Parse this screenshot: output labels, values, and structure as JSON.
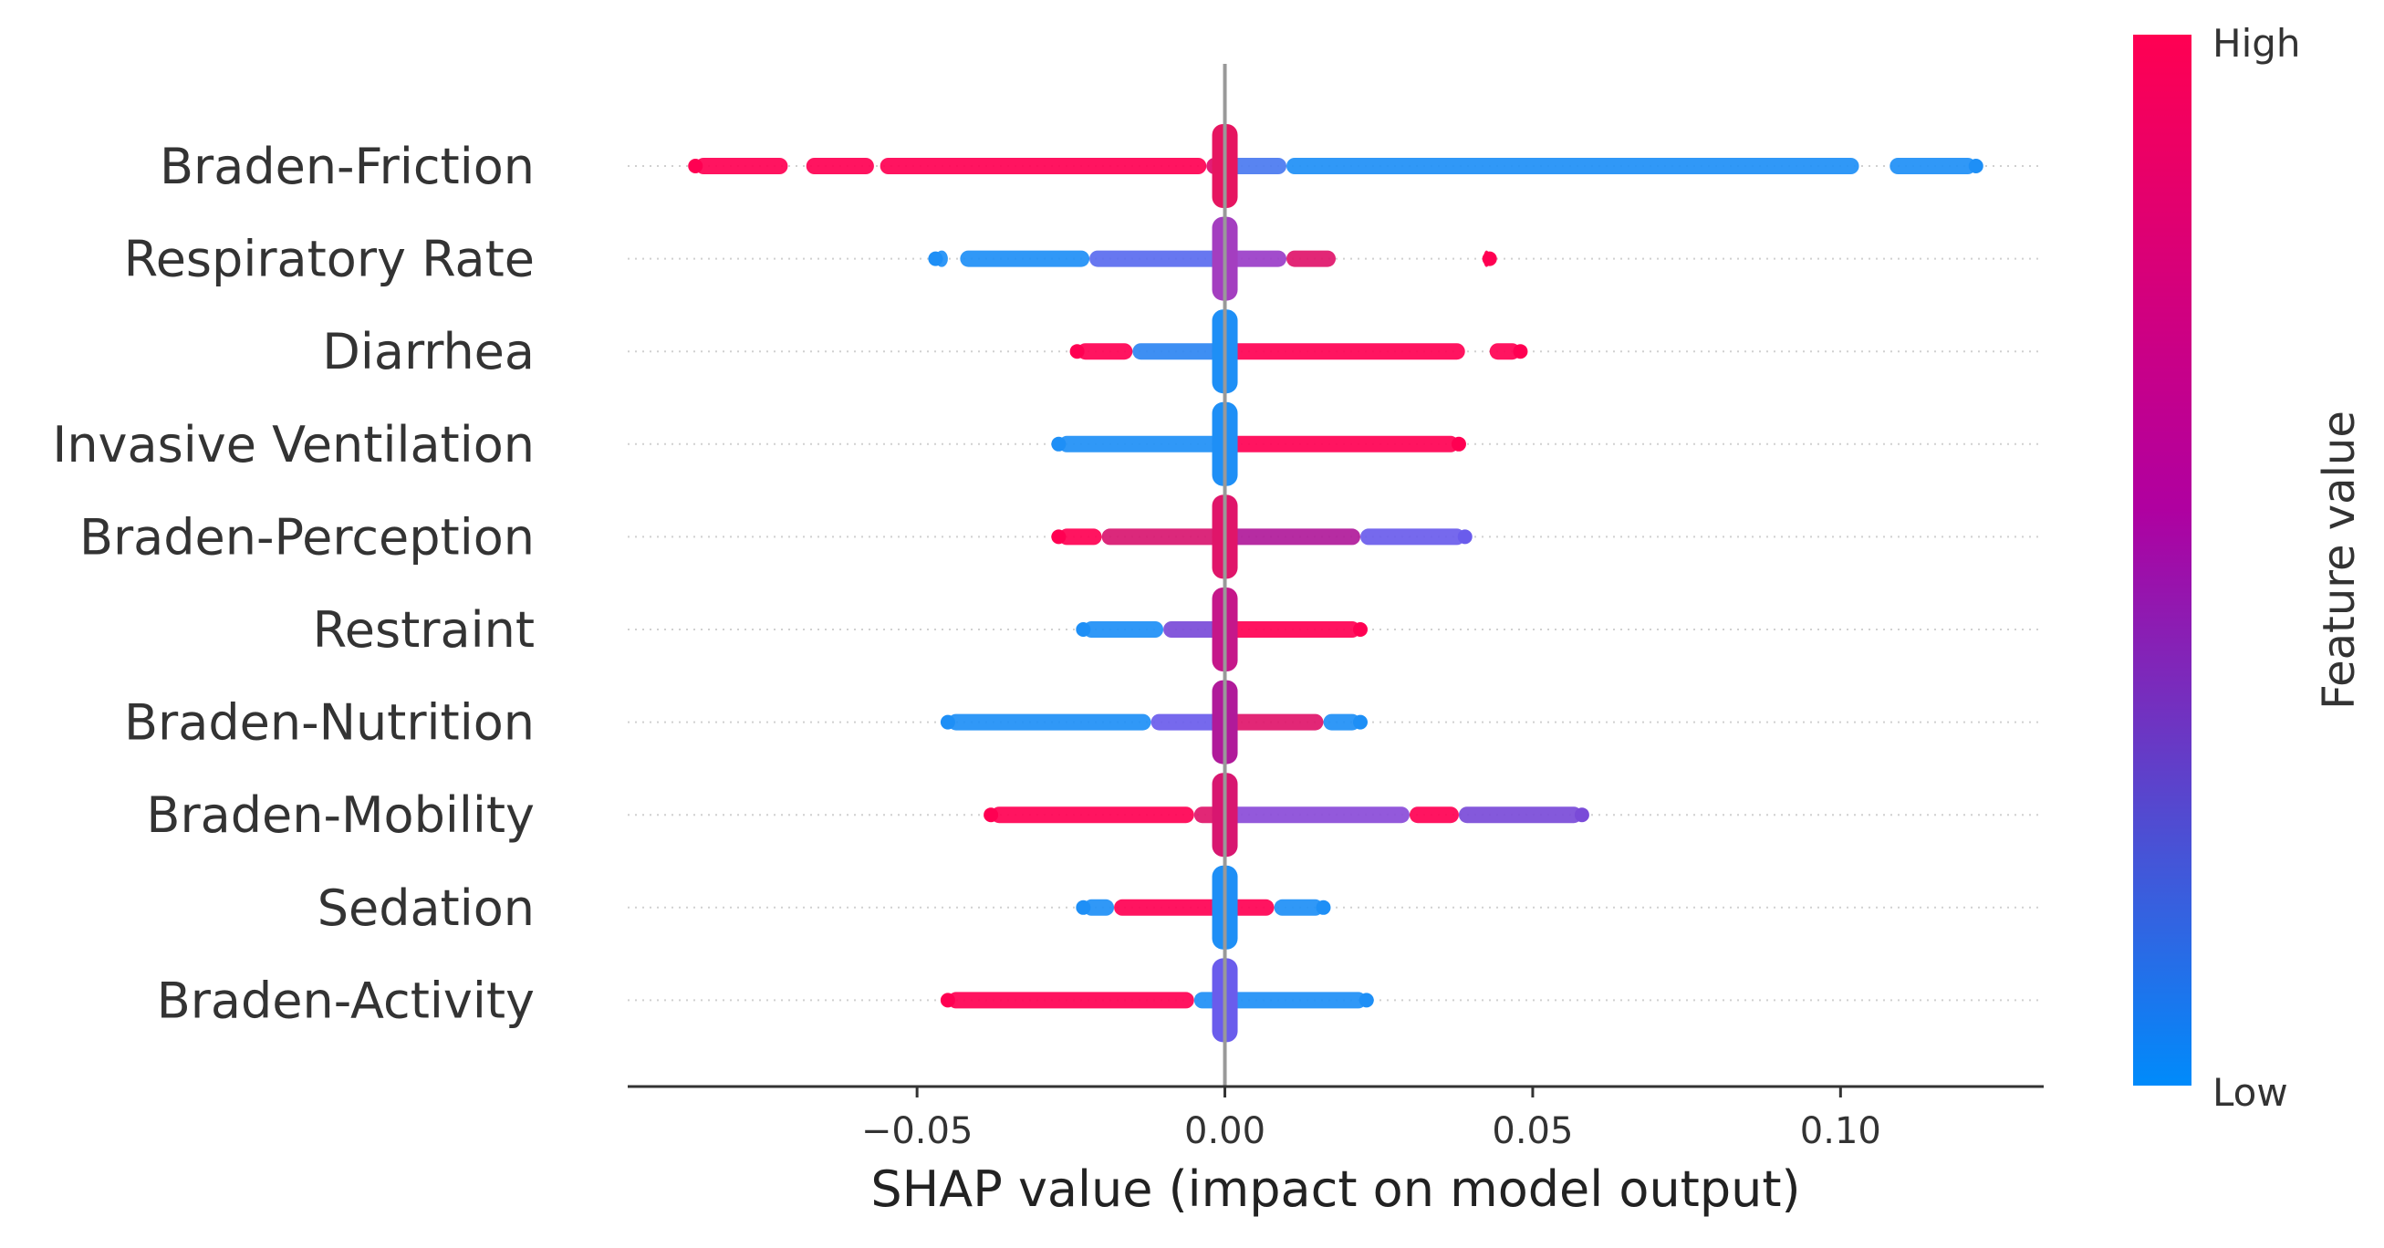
{
  "chart_data": {
    "type": "scatter",
    "subtype": "shap_beeswarm_summary",
    "title": "",
    "xlabel": "SHAP value (impact on model output)",
    "ylabel": "",
    "xlim": [
      -0.097,
      0.133
    ],
    "xticks": [
      -0.05,
      0.0,
      0.05,
      0.1
    ],
    "xtick_labels": [
      "−0.05",
      "0.00",
      "0.05",
      "0.10"
    ],
    "zero_line": 0.0,
    "colorbar": {
      "title": "Feature value",
      "high_label": "High",
      "low_label": "Low",
      "high_color": "#ff0052",
      "mid_color": "#b000a0",
      "low_color": "#008bfb"
    },
    "features": [
      {
        "name": "Braden-Friction",
        "min": -0.086,
        "max": 0.122,
        "segments": [
          {
            "from": -0.086,
            "to": -0.071,
            "color": "#ff0052"
          },
          {
            "from": -0.068,
            "to": -0.057,
            "color": "#ff0052"
          },
          {
            "from": -0.056,
            "to": -0.003,
            "color": "#ff0052"
          },
          {
            "from": -0.003,
            "to": 0.0,
            "color": "#e00a6a"
          },
          {
            "from": 0.0,
            "to": 0.01,
            "color": "#4a7af0"
          },
          {
            "from": 0.01,
            "to": 0.103,
            "color": "#1e8ff6"
          },
          {
            "from": 0.108,
            "to": 0.122,
            "color": "#1e8ff6"
          }
        ],
        "center_color": "#e61560"
      },
      {
        "name": "Respiratory Rate",
        "min": -0.047,
        "max": 0.043,
        "segments": [
          {
            "from": -0.047,
            "to": -0.045,
            "color": "#1e8ff6"
          },
          {
            "from": -0.043,
            "to": -0.022,
            "color": "#1e8ff6"
          },
          {
            "from": -0.022,
            "to": 0.0,
            "color": "#5a6bef"
          },
          {
            "from": 0.0,
            "to": 0.01,
            "color": "#9a3dc8"
          },
          {
            "from": 0.01,
            "to": 0.018,
            "color": "#e0156a"
          },
          {
            "from": 0.042,
            "to": 0.043,
            "color": "#ff0052"
          }
        ],
        "center_color": "#a43ec0"
      },
      {
        "name": "Diarrhea",
        "min": -0.024,
        "max": 0.048,
        "segments": [
          {
            "from": -0.024,
            "to": -0.015,
            "color": "#ff0052"
          },
          {
            "from": -0.015,
            "to": 0.0,
            "color": "#2e86f2"
          },
          {
            "from": 0.0,
            "to": 0.039,
            "color": "#ff0052"
          },
          {
            "from": 0.043,
            "to": 0.048,
            "color": "#ff0052"
          }
        ],
        "center_color": "#1e8ff6"
      },
      {
        "name": "Invasive Ventilation",
        "min": -0.027,
        "max": 0.038,
        "segments": [
          {
            "from": -0.027,
            "to": 0.0,
            "color": "#1e8ff6"
          },
          {
            "from": 0.0,
            "to": 0.038,
            "color": "#ff0052"
          }
        ],
        "center_color": "#1e8ff6"
      },
      {
        "name": "Braden-Perception",
        "min": -0.027,
        "max": 0.039,
        "segments": [
          {
            "from": -0.027,
            "to": -0.02,
            "color": "#ff0052"
          },
          {
            "from": -0.02,
            "to": 0.0,
            "color": "#d81670"
          },
          {
            "from": 0.0,
            "to": 0.022,
            "color": "#b01a9a"
          },
          {
            "from": 0.022,
            "to": 0.039,
            "color": "#6a5cec"
          }
        ],
        "center_color": "#e0156a"
      },
      {
        "name": "Restraint",
        "min": -0.023,
        "max": 0.022,
        "segments": [
          {
            "from": -0.023,
            "to": -0.01,
            "color": "#1e8ff6"
          },
          {
            "from": -0.01,
            "to": 0.0,
            "color": "#7a4bd8"
          },
          {
            "from": 0.0,
            "to": 0.022,
            "color": "#ff0052"
          }
        ],
        "center_color": "#c5178a"
      },
      {
        "name": "Braden-Nutrition",
        "min": -0.045,
        "max": 0.022,
        "segments": [
          {
            "from": -0.045,
            "to": -0.012,
            "color": "#1e8ff6"
          },
          {
            "from": -0.012,
            "to": 0.0,
            "color": "#6a5cec"
          },
          {
            "from": 0.0,
            "to": 0.016,
            "color": "#e0156a"
          },
          {
            "from": 0.016,
            "to": 0.022,
            "color": "#1e8ff6"
          }
        ],
        "center_color": "#b01a9a"
      },
      {
        "name": "Braden-Mobility",
        "min": -0.038,
        "max": 0.058,
        "segments": [
          {
            "from": -0.038,
            "to": -0.005,
            "color": "#ff0052"
          },
          {
            "from": -0.005,
            "to": 0.0,
            "color": "#e0156a"
          },
          {
            "from": 0.0,
            "to": 0.03,
            "color": "#8a4bd8"
          },
          {
            "from": 0.03,
            "to": 0.038,
            "color": "#ff0052"
          },
          {
            "from": 0.038,
            "to": 0.058,
            "color": "#7a4bd8"
          }
        ],
        "center_color": "#d81670"
      },
      {
        "name": "Sedation",
        "min": -0.023,
        "max": 0.016,
        "segments": [
          {
            "from": -0.023,
            "to": -0.018,
            "color": "#1e8ff6"
          },
          {
            "from": -0.018,
            "to": 0.0,
            "color": "#ff0052"
          },
          {
            "from": 0.0,
            "to": 0.008,
            "color": "#ff0052"
          },
          {
            "from": 0.008,
            "to": 0.016,
            "color": "#1e8ff6"
          }
        ],
        "center_color": "#1e8ff6"
      },
      {
        "name": "Braden-Activity",
        "min": -0.045,
        "max": 0.023,
        "segments": [
          {
            "from": -0.045,
            "to": -0.005,
            "color": "#ff0052"
          },
          {
            "from": -0.005,
            "to": 0.0,
            "color": "#1e8ff6"
          },
          {
            "from": 0.0,
            "to": 0.023,
            "color": "#1e8ff6"
          }
        ],
        "center_color": "#6a5cec"
      }
    ]
  }
}
